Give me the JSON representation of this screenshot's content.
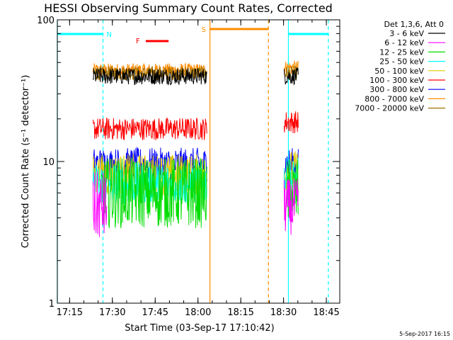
{
  "chart_data": {
    "type": "line",
    "title": "HESSI Observing Summary Count Rates, Corrected",
    "xlabel": "Start Time (03-Sep-17 17:10:42)",
    "ylabel": "Corrected Count Rate (s⁻¹ detector⁻¹)",
    "yscale": "log",
    "ylim": [
      1,
      100
    ],
    "xlim_minutes": [
      0,
      99
    ],
    "x_tick_labels": [
      "17:15",
      "17:30",
      "17:45",
      "18:00",
      "18:15",
      "18:30",
      "18:45"
    ],
    "x_ticks_minutes": [
      4.3,
      19.3,
      34.3,
      49.3,
      64.3,
      79.3,
      94.3
    ],
    "y_tick_labels": [
      "1",
      "10",
      "100"
    ],
    "y_ticks": [
      1,
      10,
      100
    ],
    "legend_title": "Det 1,3,6, Att 0",
    "legend_position": "right",
    "series": [
      {
        "name": "3 - 6 keV",
        "color": "#000000",
        "segments": [
          {
            "x": [
              12.5,
              52.5
            ],
            "level": 40,
            "noise": 0.06
          },
          {
            "x": [
              79.5,
              84.5
            ],
            "level": 40,
            "noise": 0.06
          }
        ]
      },
      {
        "name": "6 - 12 keV",
        "color": "#ff00ff",
        "segments": [
          {
            "x": [
              12.5,
              17.5
            ],
            "level": 4.8,
            "noise": 0.25
          },
          {
            "x": [
              79.5,
              84.5
            ],
            "level": 4.8,
            "noise": 0.2
          }
        ]
      },
      {
        "name": "12 - 25 keV",
        "color": "#00dd00",
        "segments": [
          {
            "x": [
              15.5,
              52.5
            ],
            "level": 6.0,
            "noise": 0.25
          },
          {
            "x": [
              80.5,
              84.5
            ],
            "level": 6.0,
            "noise": 0.25
          }
        ]
      },
      {
        "name": "25 - 50 keV",
        "color": "#00ffff",
        "segments": [
          {
            "x": [
              12.5,
              52.5
            ],
            "level": 7.0,
            "noise": 0.15
          },
          {
            "x": [
              79.5,
              84.5
            ],
            "level": 7.5,
            "noise": 0.15
          }
        ]
      },
      {
        "name": "50 - 100 keV",
        "color": "#e0c800",
        "segments": [
          {
            "x": [
              12.5,
              52.5
            ],
            "level": 8.0,
            "noise": 0.15
          },
          {
            "x": [
              79.5,
              84.5
            ],
            "level": 8.5,
            "noise": 0.15
          }
        ]
      },
      {
        "name": "100 - 300 keV",
        "color": "#ff0000",
        "segments": [
          {
            "x": [
              12.5,
              52.5
            ],
            "level": 17,
            "noise": 0.08
          },
          {
            "x": [
              79.5,
              84.5
            ],
            "level": 19,
            "noise": 0.08
          }
        ]
      },
      {
        "name": "300 - 800 keV",
        "color": "#0000ff",
        "segments": [
          {
            "x": [
              12.5,
              52.5
            ],
            "level": 9.5,
            "noise": 0.12
          },
          {
            "x": [
              79.5,
              84.5
            ],
            "level": 9.5,
            "noise": 0.12
          }
        ]
      },
      {
        "name": "800 - 7000 keV",
        "color": "#ff8c00",
        "segments": [
          {
            "x": [
              12.5,
              52.5
            ],
            "level": 44,
            "noise": 0.05
          },
          {
            "x": [
              79.5,
              84.5
            ],
            "level": 46,
            "noise": 0.05
          }
        ]
      },
      {
        "name": "7000 - 20000 keV",
        "color": "#a07000",
        "segments": [
          {
            "x": [
              12.5,
              52.5
            ],
            "level": 42,
            "noise": 0.05
          },
          {
            "x": [
              79.5,
              84.5
            ],
            "level": 42,
            "noise": 0.05
          }
        ]
      }
    ],
    "annotations": [
      {
        "label": "N",
        "color": "#00ffff"
      },
      {
        "label": "F",
        "color": "#ff0000"
      },
      {
        "label": "S",
        "color": "#ff8c00"
      }
    ],
    "flare_bar_minutes": [
      31,
      39
    ],
    "saa_bar_minutes": [
      53.5,
      74
    ],
    "night_bars_minutes": [
      [
        0,
        16
      ],
      [
        81,
        95
      ]
    ],
    "night_lines_minutes": [
      0,
      16,
      81,
      95
    ],
    "saa_lines_minutes": [
      53.5,
      74
    ],
    "stamp": "5-Sep-2017 16:15"
  }
}
